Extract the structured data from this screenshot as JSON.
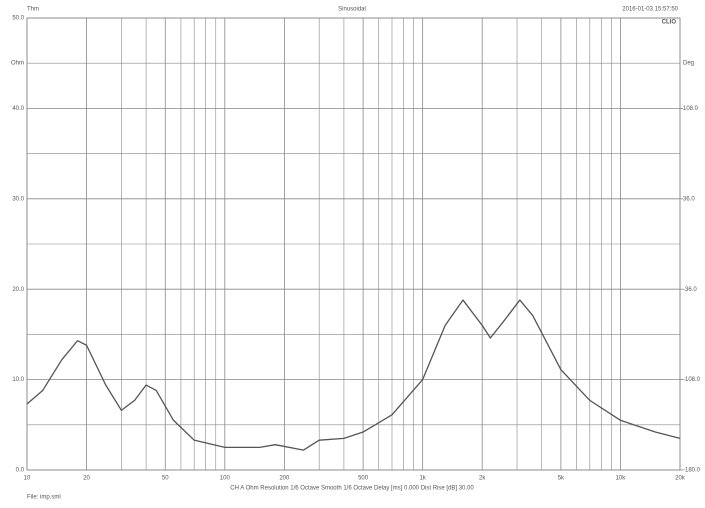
{
  "chart_data": {
    "type": "line",
    "header_left": "Thm",
    "header_center": "Sinusoidal",
    "header_right": "2016-01-03 15:57:50",
    "brand": "CLIO",
    "ylabel": "Ohm",
    "y2label": "Deg",
    "caption": "CH A  Ohm   Resolution 1/6 Octave   Smooth 1/6 Octave   Delay [ms] 0.000   Dist Rise [dB] 30.00",
    "footer": "File: imp.sml",
    "xscale": "log",
    "xlim": [
      10,
      20000
    ],
    "xticks": [
      10,
      20,
      50,
      100,
      200,
      500,
      {
        "value": 1000,
        "label": "1k"
      },
      {
        "value": 2000,
        "label": "2k"
      },
      {
        "value": 5000,
        "label": "5k"
      },
      {
        "value": 10000,
        "label": "10k"
      },
      {
        "value": 20000,
        "label": "20k"
      }
    ],
    "xminor": [
      30,
      40,
      60,
      70,
      80,
      90,
      300,
      400,
      600,
      700,
      800,
      900,
      3000,
      4000,
      6000,
      7000,
      8000,
      9000
    ],
    "ylim": [
      0,
      50
    ],
    "yticks": [
      {
        "value": 0,
        "label": "0.0"
      },
      {
        "value": 10,
        "label": "10.0"
      },
      {
        "value": 20,
        "label": "20.0"
      },
      {
        "value": 30,
        "label": "30.0"
      },
      {
        "value": 40,
        "label": "40.0"
      },
      {
        "value": 50,
        "label": "50.0"
      }
    ],
    "yminor": [
      5,
      15,
      25,
      35,
      45
    ],
    "y2lim": [
      -180,
      180
    ],
    "y2ticks": [
      {
        "value": -180,
        "label": "-180.0"
      },
      {
        "value": -108,
        "label": "-108.0"
      },
      {
        "value": -36,
        "label": "-36.0"
      },
      {
        "value": 36,
        "label": "36.0"
      },
      {
        "value": 108,
        "label": "108.0"
      }
    ],
    "series": [
      {
        "name": "Impedance",
        "color": "#555555",
        "x": [
          10,
          12,
          15,
          18,
          20,
          25,
          30,
          35,
          40,
          45,
          55,
          70,
          100,
          150,
          180,
          250,
          300,
          400,
          500,
          700,
          1000,
          1300,
          1600,
          2000,
          2200,
          2600,
          3100,
          3600,
          5000,
          7000,
          10000,
          15000,
          20000
        ],
        "values": [
          7.3,
          8.8,
          12.2,
          14.3,
          13.8,
          9.4,
          6.6,
          7.7,
          9.4,
          8.8,
          5.5,
          3.3,
          2.5,
          2.5,
          2.8,
          2.2,
          3.3,
          3.5,
          4.2,
          6.1,
          10,
          16,
          18.8,
          16,
          14.6,
          16.6,
          18.8,
          17.1,
          11.1,
          7.7,
          5.5,
          4.2,
          3.5
        ]
      }
    ]
  }
}
